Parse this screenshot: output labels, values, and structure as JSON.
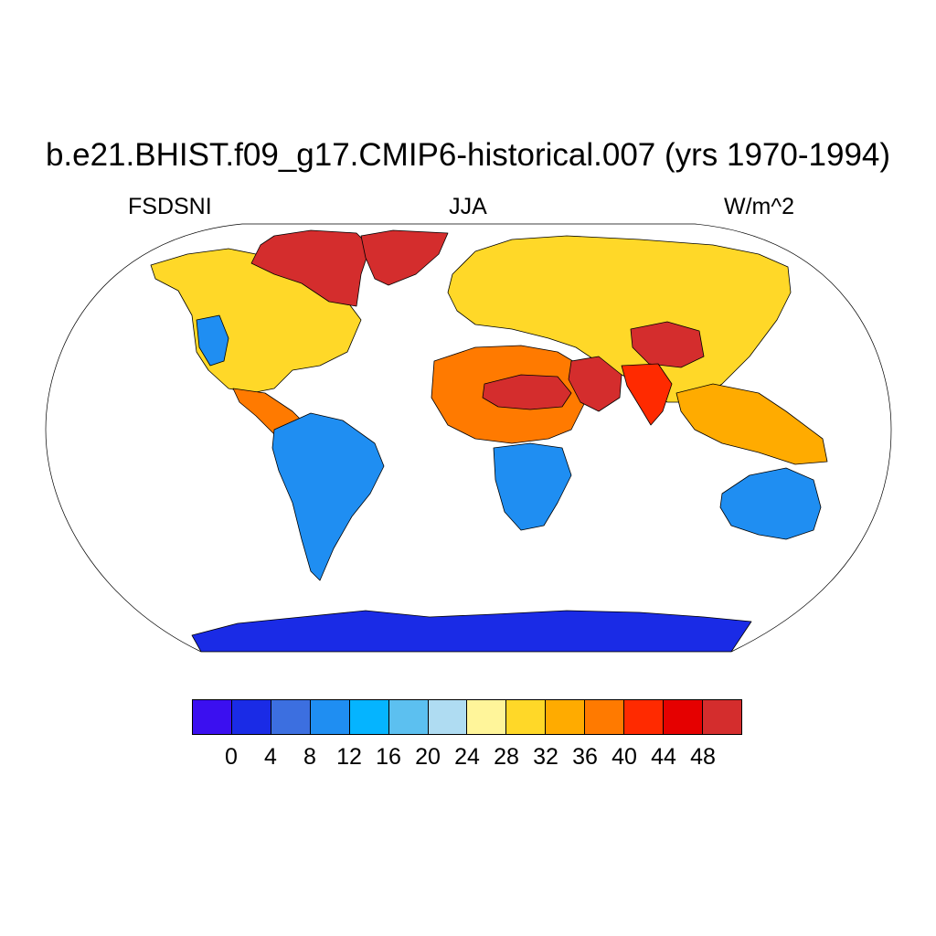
{
  "title": "b.e21.BHIST.f09_g17.CMIP6-historical.007 (yrs 1970-1994)",
  "left_label": "FSDSNI",
  "center_label": "JJA",
  "right_label": "W/m^2",
  "map": {
    "projection": "robinson",
    "ocean_color": "#ffffff",
    "outline_color": "#000000"
  },
  "colorbar": {
    "colors": [
      "#3b0ff0",
      "#1a2be6",
      "#3c6fe0",
      "#1f8ef2",
      "#05b4ff",
      "#5cc0f0",
      "#afdcf2",
      "#fff59a",
      "#ffd828",
      "#ffab00",
      "#ff7a00",
      "#ff2a00",
      "#e50000",
      "#d42d2d"
    ],
    "labels": [
      "0",
      "4",
      "8",
      "12",
      "16",
      "20",
      "24",
      "28",
      "32",
      "36",
      "40",
      "44",
      "48"
    ]
  },
  "regions": [
    {
      "name": "antarctica",
      "color": "#1a2be6"
    },
    {
      "name": "greenland",
      "color": "#d42d2d"
    },
    {
      "name": "arctic-canada",
      "color": "#d42d2d"
    },
    {
      "name": "north-america",
      "color": "#ffd828"
    },
    {
      "name": "central-america",
      "color": "#ff7a00"
    },
    {
      "name": "south-america",
      "color": "#1f8ef2"
    },
    {
      "name": "europe-asia",
      "color": "#ffd828"
    },
    {
      "name": "north-africa",
      "color": "#ff7a00"
    },
    {
      "name": "sahara",
      "color": "#d42d2d"
    },
    {
      "name": "southern-africa",
      "color": "#1f8ef2"
    },
    {
      "name": "arabia",
      "color": "#d42d2d"
    },
    {
      "name": "tibet",
      "color": "#d42d2d"
    },
    {
      "name": "india",
      "color": "#ff2a00"
    },
    {
      "name": "southeast-asia",
      "color": "#ffab00"
    },
    {
      "name": "australia",
      "color": "#1f8ef2"
    }
  ]
}
